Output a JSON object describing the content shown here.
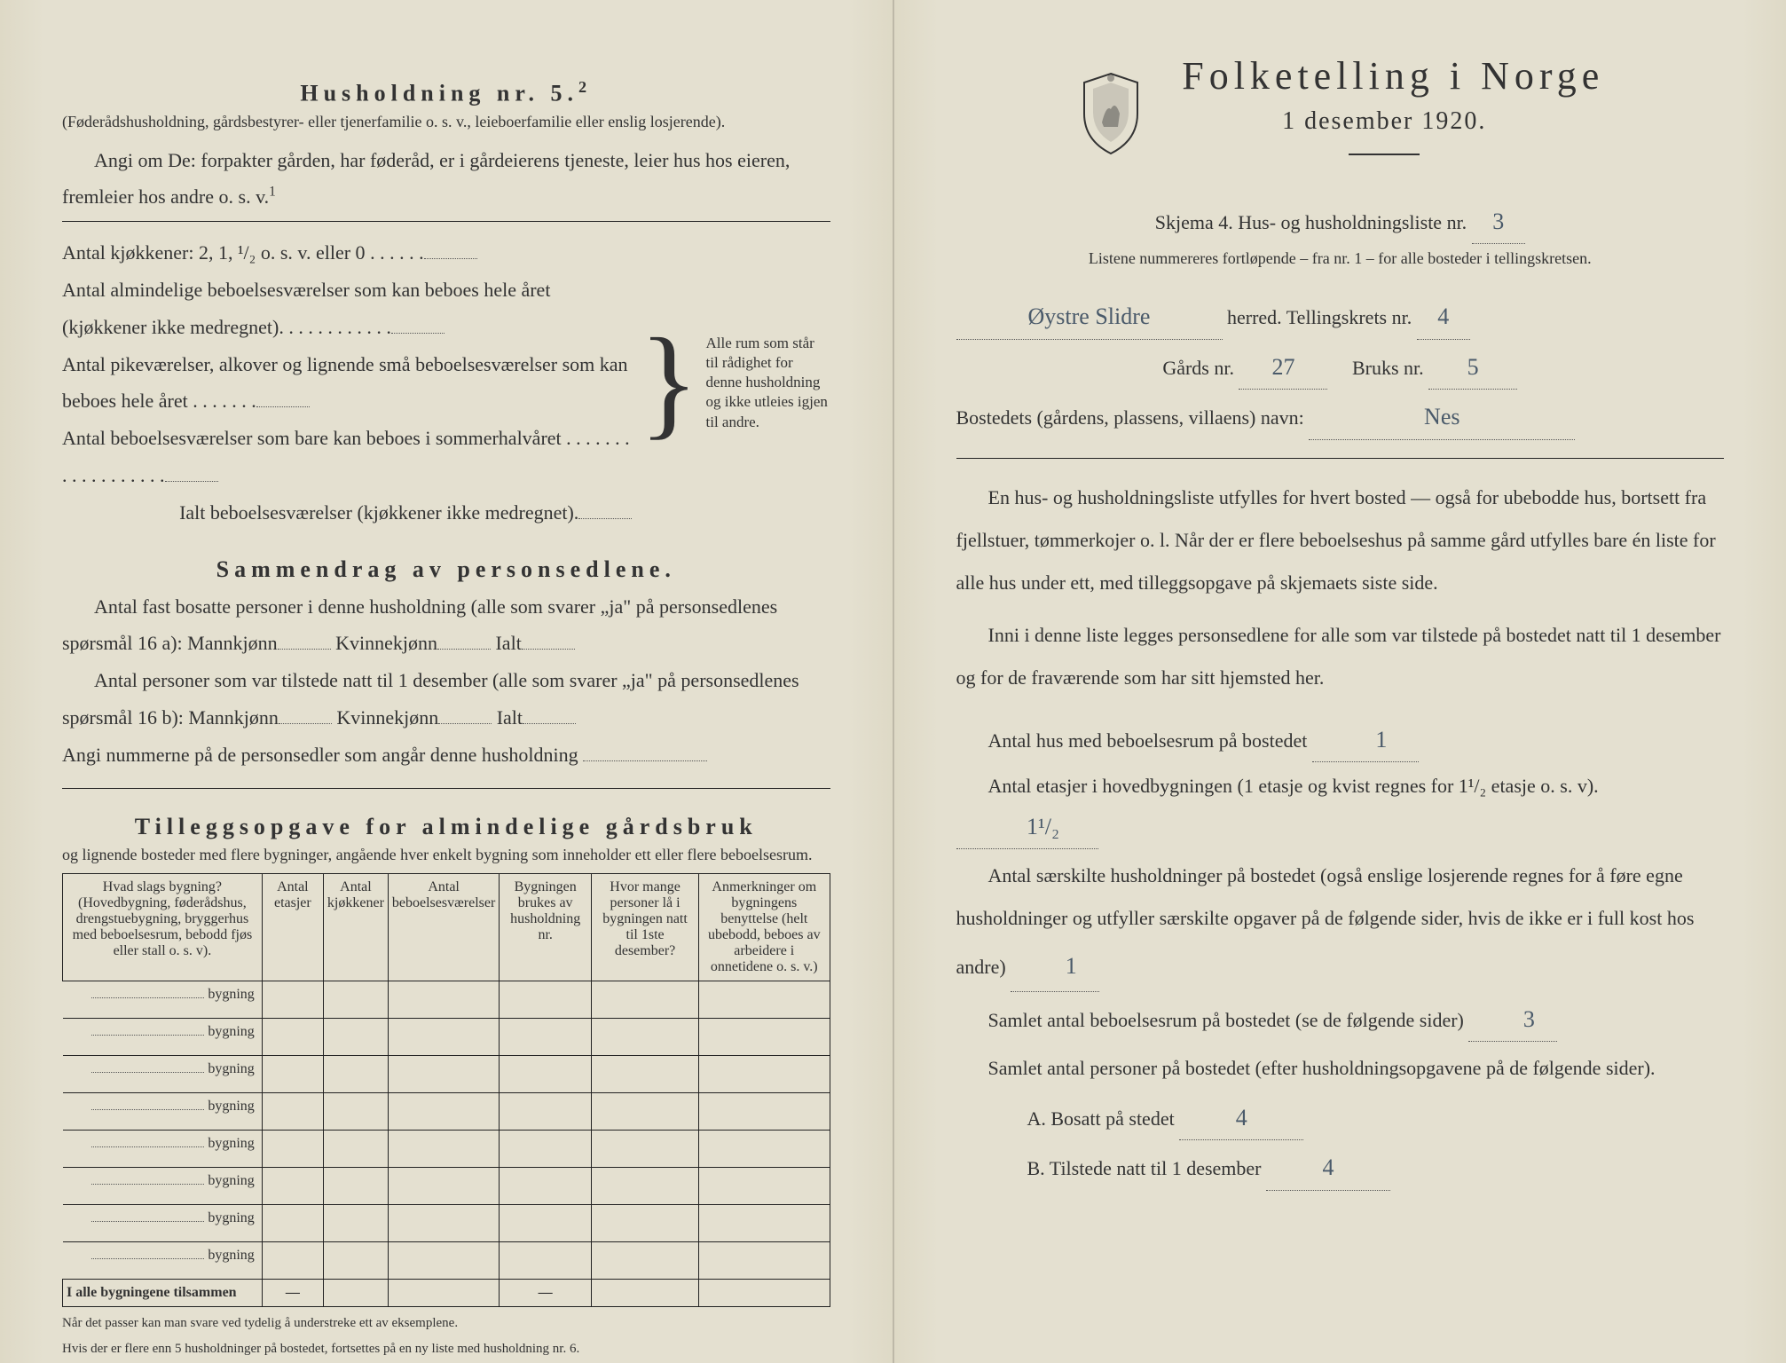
{
  "left": {
    "husholdning_title": "Husholdning nr. 5.",
    "husholdning_sup": "2",
    "husholdning_note": "(Føderådshusholdning, gårdsbestyrer- eller tjenerfamilie o. s. v., leieboerfamilie eller enslig losjerende).",
    "angi_line": "Angi om De: forpakter gården, har føderåd, er i gårdeierens tjeneste, leier hus hos eieren, fremleier hos andre o. s. v.",
    "angi_sup": "1",
    "kjokken_line": "Antal kjøkkener: 2, 1, ¹/₂ o. s. v. eller 0",
    "alm_line1": "Antal almindelige beboelsesværelser som kan beboes hele året (kjøkkener ikke medregnet).",
    "alm_line2": "Antal pikeværelser, alkover og lignende små beboelsesværelser som kan beboes hele året",
    "alm_line3": "Antal beboelsesværelser som bare kan beboes i sommerhalvåret",
    "ialt_line": "Ialt beboelsesværelser (kjøkkener ikke medregnet).",
    "brace_text": "Alle rum som står til rådighet for denne husholdning og ikke utleies igjen til andre.",
    "sammendrag_title": "Sammendrag av personsedlene.",
    "sammen_line1": "Antal fast bosatte personer i denne husholdning (alle som svarer „ja\" på personsedlenes spørsmål 16 a): Mannkjønn",
    "kvinne": "Kvinnekjønn",
    "ialt": "Ialt",
    "sammen_line2": "Antal personer som var tilstede natt til 1 desember (alle som svarer „ja\" på personsedlenes spørsmål 16 b): Mannkjønn",
    "angi_num": "Angi nummerne på de personsedler som angår denne husholdning",
    "tillegg_title": "Tilleggsopgave for almindelige gårdsbruk",
    "tillegg_note": "og lignende bosteder med flere bygninger, angående hver enkelt bygning som inneholder ett eller flere beboelsesrum.",
    "table": {
      "headers": [
        "Hvad slags bygning?\n(Hovedbygning, føderådshus, drengstuebygning, bryggerhus med beboelsesrum, bebodd fjøs eller stall o. s. v).",
        "Antal etasjer",
        "Antal kjøkkener",
        "Antal beboelsesværelser",
        "Bygningen brukes av husholdning nr.",
        "Hvor mange personer lå i bygningen natt til 1ste desember?",
        "Anmerkninger om bygningens benyttelse (helt ubebodd, beboes av arbeidere i onnetidene o. s. v.)"
      ],
      "rowlabel": "bygning",
      "rows": 8,
      "total": "I alle bygningene tilsammen",
      "dash": "—"
    },
    "foot1": "Når det passer kan man svare ved tydelig å understreke ett av eksemplene.",
    "foot2": "Hvis der er flere enn 5 husholdninger på bostedet, fortsettes på en ny liste med husholdning nr. 6."
  },
  "right": {
    "title": "Folketelling i Norge",
    "subtitle": "1 desember 1920.",
    "skjema": "Skjema 4.  Hus- og husholdningsliste nr.",
    "skjema_val": "3",
    "listene": "Listene nummereres fortløpende – fra nr. 1 – for alle bosteder i tellingskretsen.",
    "herred_val": "Øystre Slidre",
    "herred": "herred.  Tellingskrets nr.",
    "tellings_val": "4",
    "gards": "Gårds nr.",
    "gards_val": "27",
    "bruks": "Bruks nr.",
    "bruks_val": "5",
    "bosted": "Bostedets (gårdens, plassens, villaens) navn:",
    "bosted_val": "Nes",
    "para1": "En hus- og husholdningsliste utfylles for hvert bosted — også for ubebodde hus, bortsett fra fjellstuer, tømmerkojer o. l.  Når der er flere beboelseshus på samme gård utfylles bare én liste for alle hus under ett, med tilleggsopgave på skjemaets siste side.",
    "para2": "Inni i denne liste legges personsedlene for alle som var tilstede på bostedet natt til 1 desember og for de fraværende som har sitt hjemsted her.",
    "q1": "Antal hus med beboelsesrum på bostedet",
    "q1_val": "1",
    "q2a": "Antal etasjer i hovedbygningen (1 etasje og kvist regnes for 1¹/₂ etasje o. s. v).",
    "q2_val": "1¹/₂",
    "q3": "Antal særskilte husholdninger på bostedet (også enslige losjerende regnes for å føre egne husholdninger og utfyller særskilte opgaver på de følgende sider, hvis de ikke er i full kost hos andre)",
    "q3_val": "1",
    "q4": "Samlet antal beboelsesrum på bostedet (se de følgende sider)",
    "q4_val": "3",
    "q5": "Samlet antal personer på bostedet (efter husholdningsopgavene på de følgende sider).",
    "qA": "A.  Bosatt på stedet",
    "qA_val": "4",
    "qB": "B.  Tilstede natt til 1 desember",
    "qB_val": "4"
  }
}
